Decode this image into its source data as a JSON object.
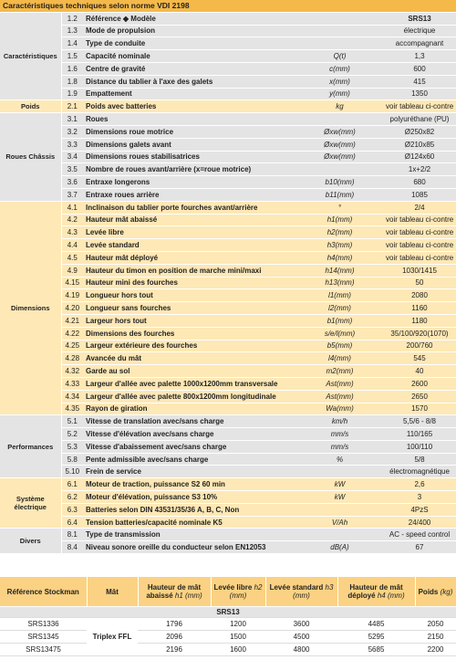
{
  "header": {
    "title": "Caractéristiques techniques selon norme VDI 2198"
  },
  "groups": [
    {
      "label": "Caractéristiques",
      "rows": [
        {
          "n": "1.2",
          "label": "Référence ◆ Modèle",
          "value": "SRS13"
        },
        {
          "n": "1.3",
          "label": "Mode de propulsion",
          "value": "électrique"
        },
        {
          "n": "1.4",
          "label": "Type de conduite",
          "value": "accompagnant"
        },
        {
          "n": "1.5",
          "label": "Capacité nominale",
          "symbol": "Q(t)",
          "value": "1,3"
        },
        {
          "n": "1.6",
          "label": "Centre de gravité",
          "symbol": "c(mm)",
          "value": "600"
        },
        {
          "n": "1.8",
          "label": "Distance du tablier à l'axe des galets",
          "symbol": "x(mm)",
          "value": "415"
        },
        {
          "n": "1.9",
          "label": "Empattement",
          "symbol": "y(mm)",
          "value": "1350"
        }
      ]
    },
    {
      "label": "Poids",
      "rows": [
        {
          "n": "2.1",
          "label": "Poids avec batteries",
          "symbol": "kg",
          "value": "voir tableau ci-contre"
        }
      ]
    },
    {
      "label": "Roues Châssis",
      "rows": [
        {
          "n": "3.1",
          "label": "Roues",
          "value": "polyuréthane (PU)"
        },
        {
          "n": "3.2",
          "label": "Dimensions roue motrice",
          "symbol": "Øxw(mm)",
          "value": "Ø250x82"
        },
        {
          "n": "3.3",
          "label": "Dimensions galets avant",
          "symbol": "Øxw(mm)",
          "value": "Ø210x85"
        },
        {
          "n": "3.4",
          "label": "Dimensions roues stabilisatrices",
          "symbol": "Øxw(mm)",
          "value": "Ø124x60"
        },
        {
          "n": "3.5",
          "label": "Nombre de roues avant/arrière (x=roue motrice)",
          "value": "1x+2/2"
        },
        {
          "n": "3.6",
          "label": "Entraxe longerons",
          "symbol": "b10(mm)",
          "value": "680"
        },
        {
          "n": "3.7",
          "label": "Entraxe roues arrière",
          "symbol": "b11(mm)",
          "value": "1085"
        }
      ]
    },
    {
      "label": "Dimensions",
      "rows": [
        {
          "n": "4.1",
          "label": "Inclinaison du tablier porte fourches avant/arrière",
          "symbol": "°",
          "value": "2/4"
        },
        {
          "n": "4.2",
          "label": "Hauteur mât abaissé",
          "symbol": "h1(mm)",
          "value": "voir tableau ci-contre"
        },
        {
          "n": "4.3",
          "label": "Levée libre",
          "symbol": "h2(mm)",
          "value": "voir tableau ci-contre"
        },
        {
          "n": "4.4",
          "label": "Levée standard",
          "symbol": "h3(mm)",
          "value": "voir tableau ci-contre"
        },
        {
          "n": "4.5",
          "label": "Hauteur mât déployé",
          "symbol": "h4(mm)",
          "value": "voir tableau ci-contre"
        },
        {
          "n": "4.9",
          "label": "Hauteur du timon en position de marche mini/maxi",
          "symbol": "h14(mm)",
          "value": "1030/1415"
        },
        {
          "n": "4.15",
          "label": "Hauteur mini des fourches",
          "symbol": "h13(mm)",
          "value": "50"
        },
        {
          "n": "4.19",
          "label": "Longueur hors tout",
          "symbol": "l1(mm)",
          "value": "2080"
        },
        {
          "n": "4.20",
          "label": "Longueur sans fourches",
          "symbol": "l2(mm)",
          "value": "1160"
        },
        {
          "n": "4.21",
          "label": "Largeur hors tout",
          "symbol": "b1(mm)",
          "value": "1180"
        },
        {
          "n": "4.22",
          "label": "Dimensions des fourches",
          "symbol": "s/e/l(mm)",
          "value": "35/100/920(1070)"
        },
        {
          "n": "4.25",
          "label": "Largeur extérieure des fourches",
          "symbol": "b5(mm)",
          "value": "200/760"
        },
        {
          "n": "4.28",
          "label": "Avancée du mât",
          "symbol": "l4(mm)",
          "value": "545"
        },
        {
          "n": "4.32",
          "label": "Garde au sol",
          "symbol": "m2(mm)",
          "value": "40"
        },
        {
          "n": "4.33",
          "label": "Largeur d'allée avec palette 1000x1200mm transversale",
          "symbol": "Ast(mm)",
          "value": "2600"
        },
        {
          "n": "4.34",
          "label": "Largeur d'allée avec palette 800x1200mm longitudinale",
          "symbol": "Ast(mm)",
          "value": "2650"
        },
        {
          "n": "4.35",
          "label": "Rayon de giration",
          "symbol": "Wa(mm)",
          "value": "1570"
        }
      ]
    },
    {
      "label": "Performances",
      "rows": [
        {
          "n": "5.1",
          "label": "Vitesse de translation avec/sans charge",
          "symbol": "km/h",
          "value": "5,5/6 - 8/8"
        },
        {
          "n": "5.2",
          "label": "Vitesse d'élévation avec/sans charge",
          "symbol": "mm/s",
          "value": "110/165"
        },
        {
          "n": "5.3",
          "label": "Vitesse d'abaissement avec/sans charge",
          "symbol": "mm/s",
          "value": "100/110"
        },
        {
          "n": "5.8",
          "label": "Pente admissible avec/sans charge",
          "symbol": "%",
          "value": "5/8"
        },
        {
          "n": "5.10",
          "label": "Frein de service",
          "value": "électromagnétique"
        }
      ]
    },
    {
      "label": "Système électrique",
      "rows": [
        {
          "n": "6.1",
          "label": "Moteur de traction, puissance S2 60 min",
          "symbol": "kW",
          "value": "2,6"
        },
        {
          "n": "6.2",
          "label": "Moteur d'élévation, puissance S3 10%",
          "symbol": "kW",
          "value": "3"
        },
        {
          "n": "6.3",
          "label": "Batteries selon DIN 43531/35/36 A, B, C, Non",
          "value": "4PzS"
        },
        {
          "n": "6.4",
          "label": "Tension batteries/capacité nominale K5",
          "symbol": "V/Ah",
          "value": "24/400"
        }
      ]
    },
    {
      "label": "Divers",
      "rows": [
        {
          "n": "8.1",
          "label": "Type de transmission",
          "value": "AC - speed control"
        },
        {
          "n": "8.4",
          "label": "Niveau sonore oreille du conducteur selon EN12053",
          "symbol": "dB(A)",
          "value": "67"
        }
      ]
    }
  ],
  "models": {
    "headers": [
      {
        "title": "Référence Stockman"
      },
      {
        "title": "Mât"
      },
      {
        "title": "Hauteur de mât abaissé",
        "unit": "h1 (mm)"
      },
      {
        "title": "Levée libre",
        "unit": "h2 (mm)"
      },
      {
        "title": "Levée standard",
        "unit": "h3 (mm)"
      },
      {
        "title": "Hauteur de mât déployé",
        "unit": "h4 (mm)"
      },
      {
        "title": "Poids",
        "unit": "(kg)"
      }
    ],
    "section": "SRS13",
    "mast": "Triplex FFL",
    "rows": [
      [
        "SRS1336",
        "1796",
        "1200",
        "3600",
        "4485",
        "2050"
      ],
      [
        "SRS1345",
        "2096",
        "1500",
        "4500",
        "5295",
        "2150"
      ],
      [
        "SRS13475",
        "2196",
        "1600",
        "4800",
        "5685",
        "2200"
      ]
    ]
  }
}
